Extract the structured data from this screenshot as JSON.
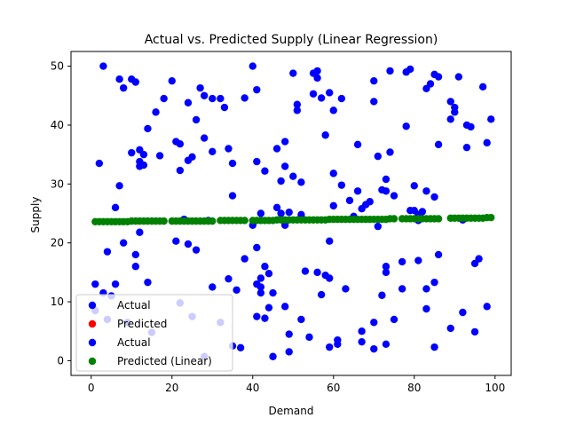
{
  "chart_data": {
    "type": "scatter",
    "title": "Actual vs. Predicted Supply (Linear Regression)",
    "xlabel": "Demand",
    "ylabel": "Supply",
    "xlim": [
      -5,
      104
    ],
    "ylim": [
      -2.5,
      52.5
    ],
    "xticks": [
      0,
      20,
      40,
      60,
      80,
      100
    ],
    "yticks": [
      0,
      10,
      20,
      30,
      40,
      50
    ],
    "grid": false,
    "legend_placement": "lower-left",
    "series": [
      {
        "name": "Actual",
        "color": "#0000ff",
        "points": [
          [
            1,
            8.5
          ],
          [
            1,
            13
          ],
          [
            2,
            33.5
          ],
          [
            3,
            50
          ],
          [
            3,
            11.5
          ],
          [
            4,
            18.5
          ],
          [
            4,
            7
          ],
          [
            5,
            11
          ],
          [
            6,
            13
          ],
          [
            6,
            26
          ],
          [
            7,
            29.7
          ],
          [
            7,
            47.8
          ],
          [
            8,
            46.3
          ],
          [
            8,
            20
          ],
          [
            9,
            6.5
          ],
          [
            10,
            47.8
          ],
          [
            10,
            35.3
          ],
          [
            11,
            47.3
          ],
          [
            11,
            16
          ],
          [
            11,
            18
          ],
          [
            12,
            21.8
          ],
          [
            12,
            33.8
          ],
          [
            12,
            33
          ],
          [
            12,
            35.8
          ],
          [
            13,
            35
          ],
          [
            13,
            33.2
          ],
          [
            14,
            39.4
          ],
          [
            14,
            13.3
          ],
          [
            15,
            4.8
          ],
          [
            16,
            42.2
          ],
          [
            17,
            34.8
          ],
          [
            18,
            44.5
          ],
          [
            20,
            47.5
          ],
          [
            21,
            37.2
          ],
          [
            21,
            20.3
          ],
          [
            22,
            32.3
          ],
          [
            22,
            9.8
          ],
          [
            22,
            36.8
          ],
          [
            23,
            24
          ],
          [
            24,
            43.8
          ],
          [
            24,
            19.8
          ],
          [
            24,
            34
          ],
          [
            25,
            34.6
          ],
          [
            25,
            7.5
          ],
          [
            26,
            40.9
          ],
          [
            26,
            18.8
          ],
          [
            27,
            46.3
          ],
          [
            28,
            45
          ],
          [
            28,
            37.8
          ],
          [
            28,
            0.7
          ],
          [
            29,
            23.8
          ],
          [
            30,
            44.5
          ],
          [
            30,
            35.5
          ],
          [
            30,
            12.5
          ],
          [
            32,
            6.5
          ],
          [
            32,
            44.5
          ],
          [
            33,
            43
          ],
          [
            34,
            36
          ],
          [
            34,
            13.9
          ],
          [
            35,
            33.5
          ],
          [
            35,
            28
          ],
          [
            35,
            2.5
          ],
          [
            36,
            12
          ],
          [
            37,
            2.2
          ],
          [
            38,
            44.6
          ],
          [
            38,
            17.3
          ],
          [
            40,
            50
          ],
          [
            40,
            23
          ],
          [
            41,
            33.8
          ],
          [
            41,
            46
          ],
          [
            41,
            19.2
          ],
          [
            41,
            7.5
          ],
          [
            41,
            13
          ],
          [
            42,
            12.5
          ],
          [
            42,
            14
          ],
          [
            42,
            25
          ],
          [
            42,
            11.5
          ],
          [
            43,
            16
          ],
          [
            43,
            7.2
          ],
          [
            43,
            32.2
          ],
          [
            44,
            9
          ],
          [
            44,
            14.8
          ],
          [
            45,
            11.5
          ],
          [
            45,
            0.7
          ],
          [
            46,
            36
          ],
          [
            46,
            26
          ],
          [
            47,
            30.5
          ],
          [
            47,
            25
          ],
          [
            48,
            9.2
          ],
          [
            48,
            23
          ],
          [
            48,
            33
          ],
          [
            48,
            37.2
          ],
          [
            49,
            25.2
          ],
          [
            49,
            1.5
          ],
          [
            49,
            4.5
          ],
          [
            50,
            48.8
          ],
          [
            50,
            31.3
          ],
          [
            51,
            43.5
          ],
          [
            51,
            42.5
          ],
          [
            52,
            30.3
          ],
          [
            52,
            24.8
          ],
          [
            52,
            7
          ],
          [
            53,
            15.2
          ],
          [
            54,
            4
          ],
          [
            55,
            45.3
          ],
          [
            55,
            48.8
          ],
          [
            56,
            49.2
          ],
          [
            56,
            48
          ],
          [
            56,
            15
          ],
          [
            57,
            11.2
          ],
          [
            57,
            44.6
          ],
          [
            58,
            38.3
          ],
          [
            58,
            14.5
          ],
          [
            59,
            45.5
          ],
          [
            59,
            14
          ],
          [
            59,
            20.3
          ],
          [
            59,
            2.3
          ],
          [
            60,
            42.5
          ],
          [
            60,
            31.8
          ],
          [
            60,
            26.3
          ],
          [
            61,
            2.8
          ],
          [
            61,
            3.5
          ],
          [
            62,
            29.8
          ],
          [
            62,
            44.5
          ],
          [
            63,
            12.2
          ],
          [
            64,
            27.2
          ],
          [
            65,
            24.5
          ],
          [
            66,
            28.8
          ],
          [
            66,
            36.7
          ],
          [
            67,
            5
          ],
          [
            67,
            3.2
          ],
          [
            67,
            25.8
          ],
          [
            68,
            26.5
          ],
          [
            69,
            27
          ],
          [
            70,
            6.5
          ],
          [
            70,
            47.5
          ],
          [
            70,
            44
          ],
          [
            70,
            2
          ],
          [
            71,
            22.8
          ],
          [
            71,
            34.7
          ],
          [
            72,
            29
          ],
          [
            72,
            11.1
          ],
          [
            73,
            30.8
          ],
          [
            73,
            28.8
          ],
          [
            73,
            15
          ],
          [
            73,
            16
          ],
          [
            73,
            2.8
          ],
          [
            74,
            49.2
          ],
          [
            74,
            35.4
          ],
          [
            75,
            28
          ],
          [
            75,
            7
          ],
          [
            77,
            12.2
          ],
          [
            77,
            16.8
          ],
          [
            78,
            49
          ],
          [
            78,
            39.8
          ],
          [
            79,
            49.5
          ],
          [
            79,
            25.5
          ],
          [
            80,
            25.5
          ],
          [
            80,
            29.7
          ],
          [
            81,
            24.8
          ],
          [
            81,
            17
          ],
          [
            81,
            23.8
          ],
          [
            82,
            25.3
          ],
          [
            83,
            46.2
          ],
          [
            83,
            28.8
          ],
          [
            83,
            12.2
          ],
          [
            83,
            8.8
          ],
          [
            84,
            47
          ],
          [
            85,
            27.8
          ],
          [
            85,
            48.6
          ],
          [
            85,
            13.3
          ],
          [
            85,
            2.3
          ],
          [
            86,
            48.2
          ],
          [
            86,
            36.7
          ],
          [
            86,
            18
          ],
          [
            89,
            44
          ],
          [
            89,
            41
          ],
          [
            89,
            5.5
          ],
          [
            90,
            43
          ],
          [
            90,
            42.2
          ],
          [
            91,
            48.2
          ],
          [
            92,
            23.9
          ],
          [
            92,
            8.2
          ],
          [
            93,
            40
          ],
          [
            93,
            36.2
          ],
          [
            94,
            39.7
          ],
          [
            95,
            4.9
          ],
          [
            95,
            16.5
          ],
          [
            96,
            17.3
          ],
          [
            97,
            46.5
          ],
          [
            98,
            9.2
          ],
          [
            98,
            37
          ],
          [
            99,
            41
          ]
        ]
      },
      {
        "name": "Predicted",
        "color": "#ff0000",
        "points": []
      },
      {
        "name": "Actual",
        "color": "#0000ff",
        "points": []
      },
      {
        "name": "Predicted (Linear)",
        "color": "#008000",
        "points": [
          [
            1,
            23.6
          ],
          [
            2,
            23.6
          ],
          [
            3,
            23.6
          ],
          [
            4,
            23.6
          ],
          [
            5,
            23.6
          ],
          [
            6,
            23.6
          ],
          [
            7,
            23.6
          ],
          [
            8,
            23.6
          ],
          [
            9,
            23.6
          ],
          [
            10,
            23.7
          ],
          [
            11,
            23.7
          ],
          [
            12,
            23.7
          ],
          [
            13,
            23.7
          ],
          [
            14,
            23.7
          ],
          [
            15,
            23.7
          ],
          [
            16,
            23.7
          ],
          [
            17,
            23.7
          ],
          [
            18,
            23.7
          ],
          [
            20,
            23.7
          ],
          [
            21,
            23.7
          ],
          [
            22,
            23.7
          ],
          [
            23,
            23.7
          ],
          [
            24,
            23.7
          ],
          [
            25,
            23.7
          ],
          [
            26,
            23.7
          ],
          [
            27,
            23.7
          ],
          [
            28,
            23.7
          ],
          [
            29,
            23.7
          ],
          [
            30,
            23.7
          ],
          [
            32,
            23.8
          ],
          [
            33,
            23.8
          ],
          [
            34,
            23.8
          ],
          [
            35,
            23.8
          ],
          [
            36,
            23.8
          ],
          [
            37,
            23.8
          ],
          [
            38,
            23.8
          ],
          [
            40,
            23.8
          ],
          [
            41,
            23.8
          ],
          [
            42,
            23.8
          ],
          [
            43,
            23.8
          ],
          [
            44,
            23.8
          ],
          [
            45,
            23.8
          ],
          [
            46,
            23.9
          ],
          [
            47,
            23.9
          ],
          [
            48,
            23.9
          ],
          [
            49,
            23.9
          ],
          [
            50,
            23.9
          ],
          [
            51,
            23.9
          ],
          [
            52,
            23.9
          ],
          [
            53,
            23.9
          ],
          [
            54,
            23.9
          ],
          [
            55,
            23.9
          ],
          [
            56,
            23.9
          ],
          [
            57,
            23.9
          ],
          [
            58,
            23.9
          ],
          [
            59,
            24.0
          ],
          [
            60,
            24.0
          ],
          [
            61,
            24.0
          ],
          [
            62,
            24.0
          ],
          [
            63,
            24.0
          ],
          [
            64,
            24.0
          ],
          [
            65,
            24.0
          ],
          [
            66,
            24.0
          ],
          [
            67,
            24.0
          ],
          [
            68,
            24.0
          ],
          [
            69,
            24.0
          ],
          [
            70,
            24.0
          ],
          [
            71,
            24.0
          ],
          [
            72,
            24.0
          ],
          [
            73,
            24.0
          ],
          [
            74,
            24.1
          ],
          [
            75,
            24.1
          ],
          [
            77,
            24.1
          ],
          [
            78,
            24.1
          ],
          [
            79,
            24.1
          ],
          [
            80,
            24.1
          ],
          [
            81,
            24.1
          ],
          [
            82,
            24.1
          ],
          [
            83,
            24.1
          ],
          [
            84,
            24.1
          ],
          [
            85,
            24.1
          ],
          [
            86,
            24.1
          ],
          [
            89,
            24.2
          ],
          [
            90,
            24.2
          ],
          [
            91,
            24.2
          ],
          [
            92,
            24.2
          ],
          [
            93,
            24.2
          ],
          [
            94,
            24.2
          ],
          [
            95,
            24.2
          ],
          [
            96,
            24.2
          ],
          [
            97,
            24.2
          ],
          [
            98,
            24.3
          ],
          [
            99,
            24.3
          ]
        ]
      }
    ]
  }
}
